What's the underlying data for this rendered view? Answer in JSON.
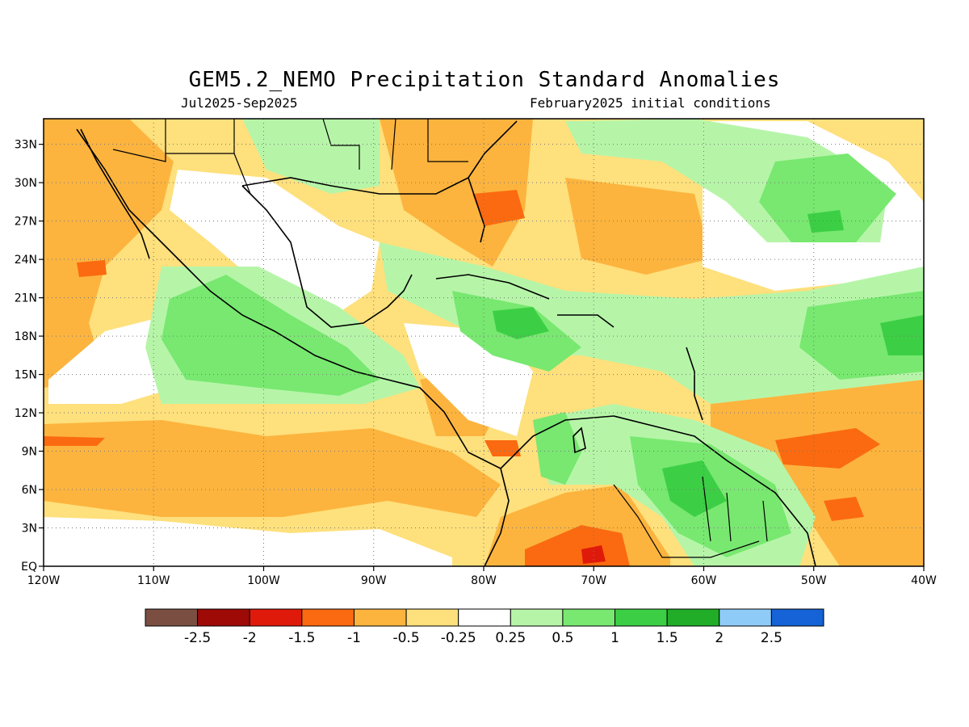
{
  "title": "GEM5.2_NEMO Precipitation Standard Anomalies",
  "subtitle_left": "Jul2025-Sep2025",
  "subtitle_right": "February2025 initial conditions",
  "map": {
    "lon_range": [
      -120,
      -40
    ],
    "lat_range": [
      0,
      35
    ],
    "lon_ticks": [
      {
        "value": -120,
        "label": "120W"
      },
      {
        "value": -110,
        "label": "110W"
      },
      {
        "value": -100,
        "label": "100W"
      },
      {
        "value": -90,
        "label": "90W"
      },
      {
        "value": -80,
        "label": "80W"
      },
      {
        "value": -70,
        "label": "70W"
      },
      {
        "value": -60,
        "label": "60W"
      },
      {
        "value": -50,
        "label": "50W"
      },
      {
        "value": -40,
        "label": "40W"
      }
    ],
    "lat_ticks": [
      {
        "value": 0,
        "label": "EQ"
      },
      {
        "value": 3,
        "label": "3N"
      },
      {
        "value": 6,
        "label": "6N"
      },
      {
        "value": 9,
        "label": "9N"
      },
      {
        "value": 12,
        "label": "12N"
      },
      {
        "value": 15,
        "label": "15N"
      },
      {
        "value": 18,
        "label": "18N"
      },
      {
        "value": 21,
        "label": "21N"
      },
      {
        "value": 24,
        "label": "24N"
      },
      {
        "value": 27,
        "label": "27N"
      },
      {
        "value": 30,
        "label": "30N"
      },
      {
        "value": 33,
        "label": "33N"
      }
    ]
  },
  "colorbar": {
    "colors": [
      "#7a4f42",
      "#9e0a06",
      "#e01a0b",
      "#fb6a10",
      "#fcb43e",
      "#fee07c",
      "#ffffff",
      "#b6f5a8",
      "#78e870",
      "#3ccf45",
      "#21ad28",
      "#8fcbf7",
      "#1563d6"
    ],
    "labels": [
      "-2.5",
      "-2",
      "-1.5",
      "-1",
      "-0.5",
      "-0.25",
      "0.25",
      "0.5",
      "1",
      "1.5",
      "2",
      "2.5"
    ]
  },
  "anomaly_colors": {
    "dry_strong": "#fb6a10",
    "dry_moderate": "#fcb43e",
    "dry_weak": "#fee07c",
    "neutral": "#ffffff",
    "wet_weak": "#b6f5a8",
    "wet_moderate": "#78e870",
    "wet_strong": "#3ccf45",
    "wet_very_strong": "#21ad28",
    "dry_extreme": "#e01a0b"
  }
}
